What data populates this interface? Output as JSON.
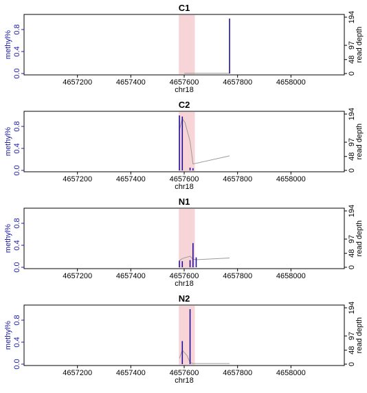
{
  "chart_data": [
    {
      "type": "bar",
      "title": "C1",
      "xlabel": "chr18",
      "ylabel": "methyl%",
      "y2label": "read depth",
      "xlim": [
        4657000,
        4658200
      ],
      "ylim": [
        0,
        1.05
      ],
      "y2lim": [
        0,
        194
      ],
      "xticks": [
        "4657200",
        "4657400",
        "4657600",
        "4657800",
        "4658000"
      ],
      "yticks": [
        "0.0",
        "0.4",
        "0.8"
      ],
      "y2ticks": [
        "0",
        "48",
        "97",
        "194"
      ],
      "highlight": [
        4657580,
        4657640
      ],
      "methylation": {
        "x": [
          4657770
        ],
        "y": [
          1.0
        ]
      },
      "read_depth": {
        "x": [
          4657600,
          4657770
        ],
        "y": [
          1,
          1
        ]
      },
      "grid": false
    },
    {
      "type": "bar",
      "title": "C2",
      "xlabel": "chr18",
      "ylabel": "methyl%",
      "y2label": "read depth",
      "xlim": [
        4657000,
        4658200
      ],
      "ylim": [
        0,
        1.05
      ],
      "y2lim": [
        0,
        194
      ],
      "xticks": [
        "4657200",
        "4657400",
        "4657600",
        "4657800",
        "4658000"
      ],
      "yticks": [
        "0.0",
        "0.4",
        "0.8"
      ],
      "y2ticks": [
        "0",
        "48",
        "97",
        "194"
      ],
      "highlight": [
        4657580,
        4657640
      ],
      "methylation": {
        "x": [
          4657582,
          4657593,
          4657622,
          4657633
        ],
        "y": [
          1.0,
          0.98,
          0.05,
          0.04
        ]
      },
      "read_depth": {
        "x": [
          4657582,
          4657593,
          4657603,
          4657622,
          4657633,
          4657770
        ],
        "y": [
          140,
          178,
          165,
          100,
          22,
          50
        ]
      },
      "grid": false
    },
    {
      "type": "bar",
      "title": "N1",
      "xlabel": "chr18",
      "ylabel": "methyl%",
      "y2label": "read depth",
      "xlim": [
        4657000,
        4658200
      ],
      "ylim": [
        0,
        1.05
      ],
      "y2lim": [
        0,
        194
      ],
      "xticks": [
        "4657200",
        "4657400",
        "4657600",
        "4657800",
        "4658000"
      ],
      "yticks": [
        "0.0",
        "0.4",
        "0.8"
      ],
      "y2ticks": [
        "0",
        "48",
        "97",
        "194"
      ],
      "highlight": [
        4657580,
        4657640
      ],
      "methylation": {
        "x": [
          4657582,
          4657593,
          4657622,
          4657633,
          4657645
        ],
        "y": [
          0.12,
          0.11,
          0.13,
          0.44,
          0.18
        ]
      },
      "read_depth": {
        "x": [
          4657582,
          4657593,
          4657622,
          4657633,
          4657645,
          4657770
        ],
        "y": [
          23,
          30,
          38,
          28,
          26,
          32
        ]
      },
      "grid": false
    },
    {
      "type": "bar",
      "title": "N2",
      "xlabel": "chr18",
      "ylabel": "methyl%",
      "y2label": "read depth",
      "xlim": [
        4657000,
        4658200
      ],
      "ylim": [
        0,
        1.05
      ],
      "y2lim": [
        0,
        194
      ],
      "xticks": [
        "4657200",
        "4657400",
        "4657600",
        "4657800",
        "4658000"
      ],
      "yticks": [
        "0.0",
        "0.4",
        "0.8"
      ],
      "y2ticks": [
        "0",
        "48",
        "97",
        "194"
      ],
      "highlight": [
        4657580,
        4657640
      ],
      "methylation": {
        "x": [
          4657593,
          4657622
        ],
        "y": [
          0.42,
          1.0
        ]
      },
      "read_depth": {
        "x": [
          4657582,
          4657593,
          4657610,
          4657622,
          4657633,
          4657770
        ],
        "y": [
          20,
          48,
          30,
          6,
          2,
          2
        ]
      },
      "grid": false
    }
  ],
  "colors": {
    "methylation": "#1f0f9c",
    "read_depth": "#9a9a9a",
    "highlight": "#f4c6c9",
    "axis_text": "#1a1aa6",
    "frame": "#000000"
  }
}
